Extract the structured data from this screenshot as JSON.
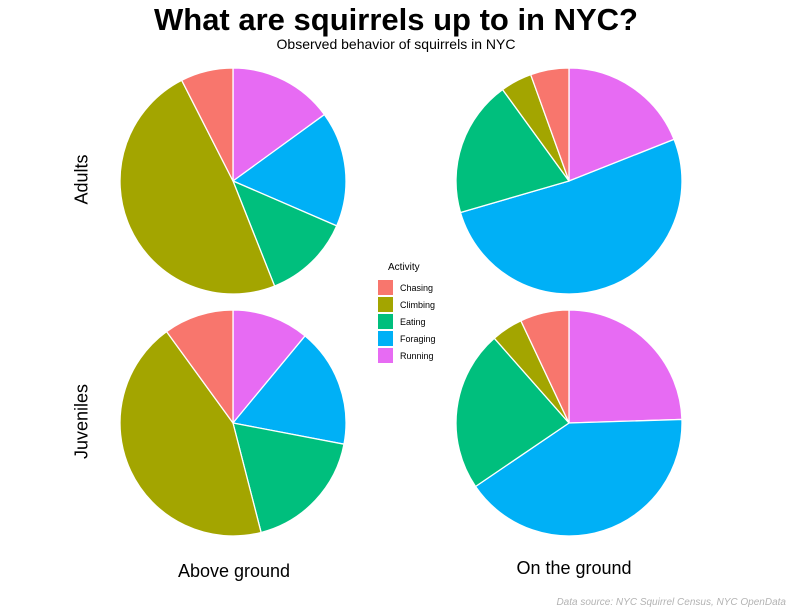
{
  "chart_data": {
    "type": "pie",
    "title": "What are squirrels up to in NYC?",
    "subtitle": "Observed behavior of squirrels in NYC",
    "caption": "Data source: NYC Squirrel Census, NYC OpenData",
    "legend_title": "Activity",
    "legend_placement": "center",
    "categories": [
      "Chasing",
      "Climbing",
      "Eating",
      "Foraging",
      "Running"
    ],
    "colors": [
      "#F8766D",
      "#A3A500",
      "#00BF7D",
      "#00B0F6",
      "#E76BF3"
    ],
    "rows": [
      "Adults",
      "Juveniles"
    ],
    "columns": [
      "Above ground",
      "On the ground"
    ],
    "panels": [
      {
        "row": "Adults",
        "column": "Above ground",
        "values": [
          7.5,
          48.5,
          12.5,
          16.5,
          15.0
        ]
      },
      {
        "row": "Adults",
        "column": "On the ground",
        "values": [
          5.5,
          4.5,
          19.5,
          51.5,
          19.0
        ]
      },
      {
        "row": "Juveniles",
        "column": "Above ground",
        "values": [
          10.0,
          44.0,
          18.0,
          17.0,
          11.0
        ]
      },
      {
        "row": "Juveniles",
        "column": "On the ground",
        "values": [
          7.0,
          4.5,
          23.0,
          41.0,
          24.5
        ]
      }
    ]
  }
}
